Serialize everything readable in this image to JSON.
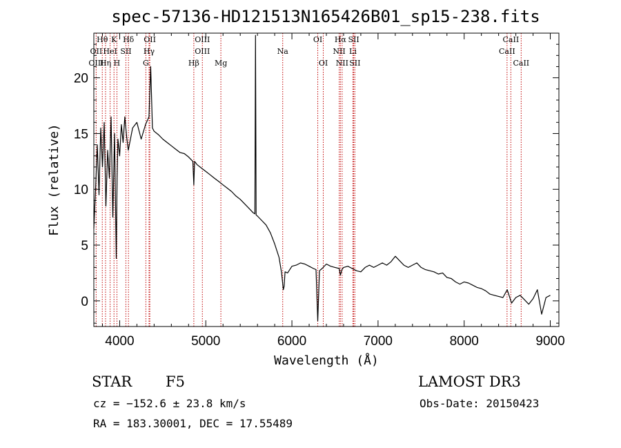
{
  "chart_data": {
    "type": "line",
    "title": "spec-57136-HD121513N165426B01_sp15-238.fits",
    "xlabel": "Wavelength (Å)",
    "ylabel": "Flux (relative)",
    "xlim": [
      3700,
      9100
    ],
    "ylim": [
      -2.3,
      24.0
    ],
    "x_ticks": [
      4000,
      5000,
      6000,
      7000,
      8000,
      9000
    ],
    "y_ticks": [
      0,
      5,
      10,
      15,
      20
    ],
    "grid": false,
    "series": [
      {
        "x": [
          3700,
          3720,
          3740,
          3760,
          3780,
          3800,
          3820,
          3840,
          3860,
          3880,
          3900,
          3920,
          3940,
          3960,
          3970,
          3980,
          4000,
          4020,
          4040,
          4060,
          4080,
          4100,
          4150,
          4200,
          4250,
          4300,
          4340,
          4360,
          4380,
          4400,
          4450,
          4500,
          4550,
          4600,
          4650,
          4700,
          4750,
          4800,
          4850,
          4861,
          4870,
          4900,
          4950,
          5000,
          5050,
          5100,
          5150,
          5200,
          5250,
          5300,
          5350,
          5400,
          5450,
          5500,
          5550,
          5570,
          5577,
          5584,
          5600,
          5650,
          5700,
          5750,
          5800,
          5850,
          5880,
          5900,
          5910,
          5920,
          5950,
          6000,
          6050,
          6100,
          6150,
          6200,
          6250,
          6280,
          6300,
          6320,
          6350,
          6400,
          6450,
          6500,
          6550,
          6563,
          6580,
          6600,
          6650,
          6700,
          6750,
          6800,
          6850,
          6900,
          6950,
          7000,
          7050,
          7100,
          7150,
          7200,
          7250,
          7300,
          7350,
          7400,
          7450,
          7500,
          7550,
          7600,
          7650,
          7700,
          7750,
          7800,
          7850,
          7900,
          7950,
          8000,
          8050,
          8100,
          8150,
          8200,
          8250,
          8300,
          8350,
          8400,
          8450,
          8500,
          8550,
          8600,
          8650,
          8700,
          8750,
          8800,
          8850,
          8900,
          8950,
          9000
        ],
        "y": [
          6.5,
          10.0,
          14.0,
          9.5,
          15.5,
          12.0,
          16.0,
          8.5,
          13.5,
          11.0,
          16.5,
          7.5,
          15.0,
          3.8,
          11.0,
          14.5,
          13.0,
          15.8,
          14.2,
          16.5,
          14.8,
          13.5,
          15.5,
          16.0,
          14.5,
          15.8,
          16.5,
          21.0,
          15.5,
          15.2,
          14.9,
          14.5,
          14.2,
          13.9,
          13.6,
          13.3,
          13.2,
          12.9,
          12.5,
          10.4,
          12.5,
          12.2,
          11.9,
          11.6,
          11.3,
          11.0,
          10.7,
          10.4,
          10.1,
          9.8,
          9.4,
          9.1,
          8.7,
          8.3,
          7.9,
          7.8,
          23.8,
          7.7,
          7.6,
          7.2,
          6.8,
          6.1,
          5.1,
          3.9,
          2.5,
          1.0,
          1.3,
          2.6,
          2.5,
          3.1,
          3.2,
          3.4,
          3.3,
          3.1,
          2.9,
          2.8,
          -1.8,
          2.7,
          2.9,
          3.3,
          3.1,
          3.0,
          2.9,
          2.3,
          2.8,
          3.0,
          3.1,
          2.9,
          2.7,
          2.6,
          3.0,
          3.2,
          3.0,
          3.2,
          3.4,
          3.2,
          3.5,
          4.0,
          3.6,
          3.2,
          3.0,
          3.2,
          3.4,
          3.0,
          2.8,
          2.7,
          2.6,
          2.4,
          2.5,
          2.1,
          2.0,
          1.7,
          1.5,
          1.7,
          1.6,
          1.4,
          1.2,
          1.1,
          0.9,
          0.6,
          0.5,
          0.4,
          0.3,
          1.0,
          -0.2,
          0.3,
          0.5,
          0.1,
          -0.3,
          0.2,
          1.0,
          -1.2,
          0.3,
          0.5
        ]
      }
    ],
    "line_markers": [
      {
        "label": "Hθ",
        "wavelength": 3798,
        "row": 1
      },
      {
        "label": "K",
        "wavelength": 3934,
        "row": 1
      },
      {
        "label": "Hδ",
        "wavelength": 4102,
        "row": 1
      },
      {
        "label": "OII",
        "wavelength": 4350,
        "row": 1
      },
      {
        "label": "OIII",
        "wavelength": 4960,
        "row": 1
      },
      {
        "label": "OI",
        "wavelength": 6300,
        "row": 1
      },
      {
        "label": "Hα",
        "wavelength": 6563,
        "row": 1
      },
      {
        "label": "SII",
        "wavelength": 6717,
        "row": 1
      },
      {
        "label": "CaII",
        "wavelength": 8542,
        "row": 1
      },
      {
        "label": "OII",
        "wavelength": 3727,
        "row": 2
      },
      {
        "label": "HeI",
        "wavelength": 3889,
        "row": 2
      },
      {
        "label": "SII",
        "wavelength": 4072,
        "row": 2
      },
      {
        "label": "Hγ",
        "wavelength": 4341,
        "row": 2
      },
      {
        "label": "OIII",
        "wavelength": 4960,
        "row": 2
      },
      {
        "label": "Na",
        "wavelength": 5893,
        "row": 2
      },
      {
        "label": "NII",
        "wavelength": 6549,
        "row": 2
      },
      {
        "label": "Li",
        "wavelength": 6708,
        "row": 2
      },
      {
        "label": "CaII",
        "wavelength": 8498,
        "row": 2
      },
      {
        "label": "OIII",
        "wavelength": 3727,
        "row": 3
      },
      {
        "label": "Hη",
        "wavelength": 3836,
        "row": 3
      },
      {
        "label": "H",
        "wavelength": 3968,
        "row": 3
      },
      {
        "label": "G",
        "wavelength": 4304,
        "row": 3
      },
      {
        "label": "Hβ",
        "wavelength": 4861,
        "row": 3
      },
      {
        "label": "Mg",
        "wavelength": 5175,
        "row": 3
      },
      {
        "label": "OI",
        "wavelength": 6364,
        "row": 3
      },
      {
        "label": "NII",
        "wavelength": 6583,
        "row": 3
      },
      {
        "label": "SII",
        "wavelength": 6731,
        "row": 3
      },
      {
        "label": "CaII",
        "wavelength": 8662,
        "row": 3
      }
    ],
    "marker_color": "#c00000"
  },
  "info": {
    "object_class": "STAR",
    "subclass": "F5",
    "survey": "LAMOST DR3",
    "redshift_text": "cz = −152.6 ± 23.8 km/s",
    "obs_date": "Obs-Date: 20150423",
    "coords": "RA = 183.30001, DEC =  17.55489"
  }
}
